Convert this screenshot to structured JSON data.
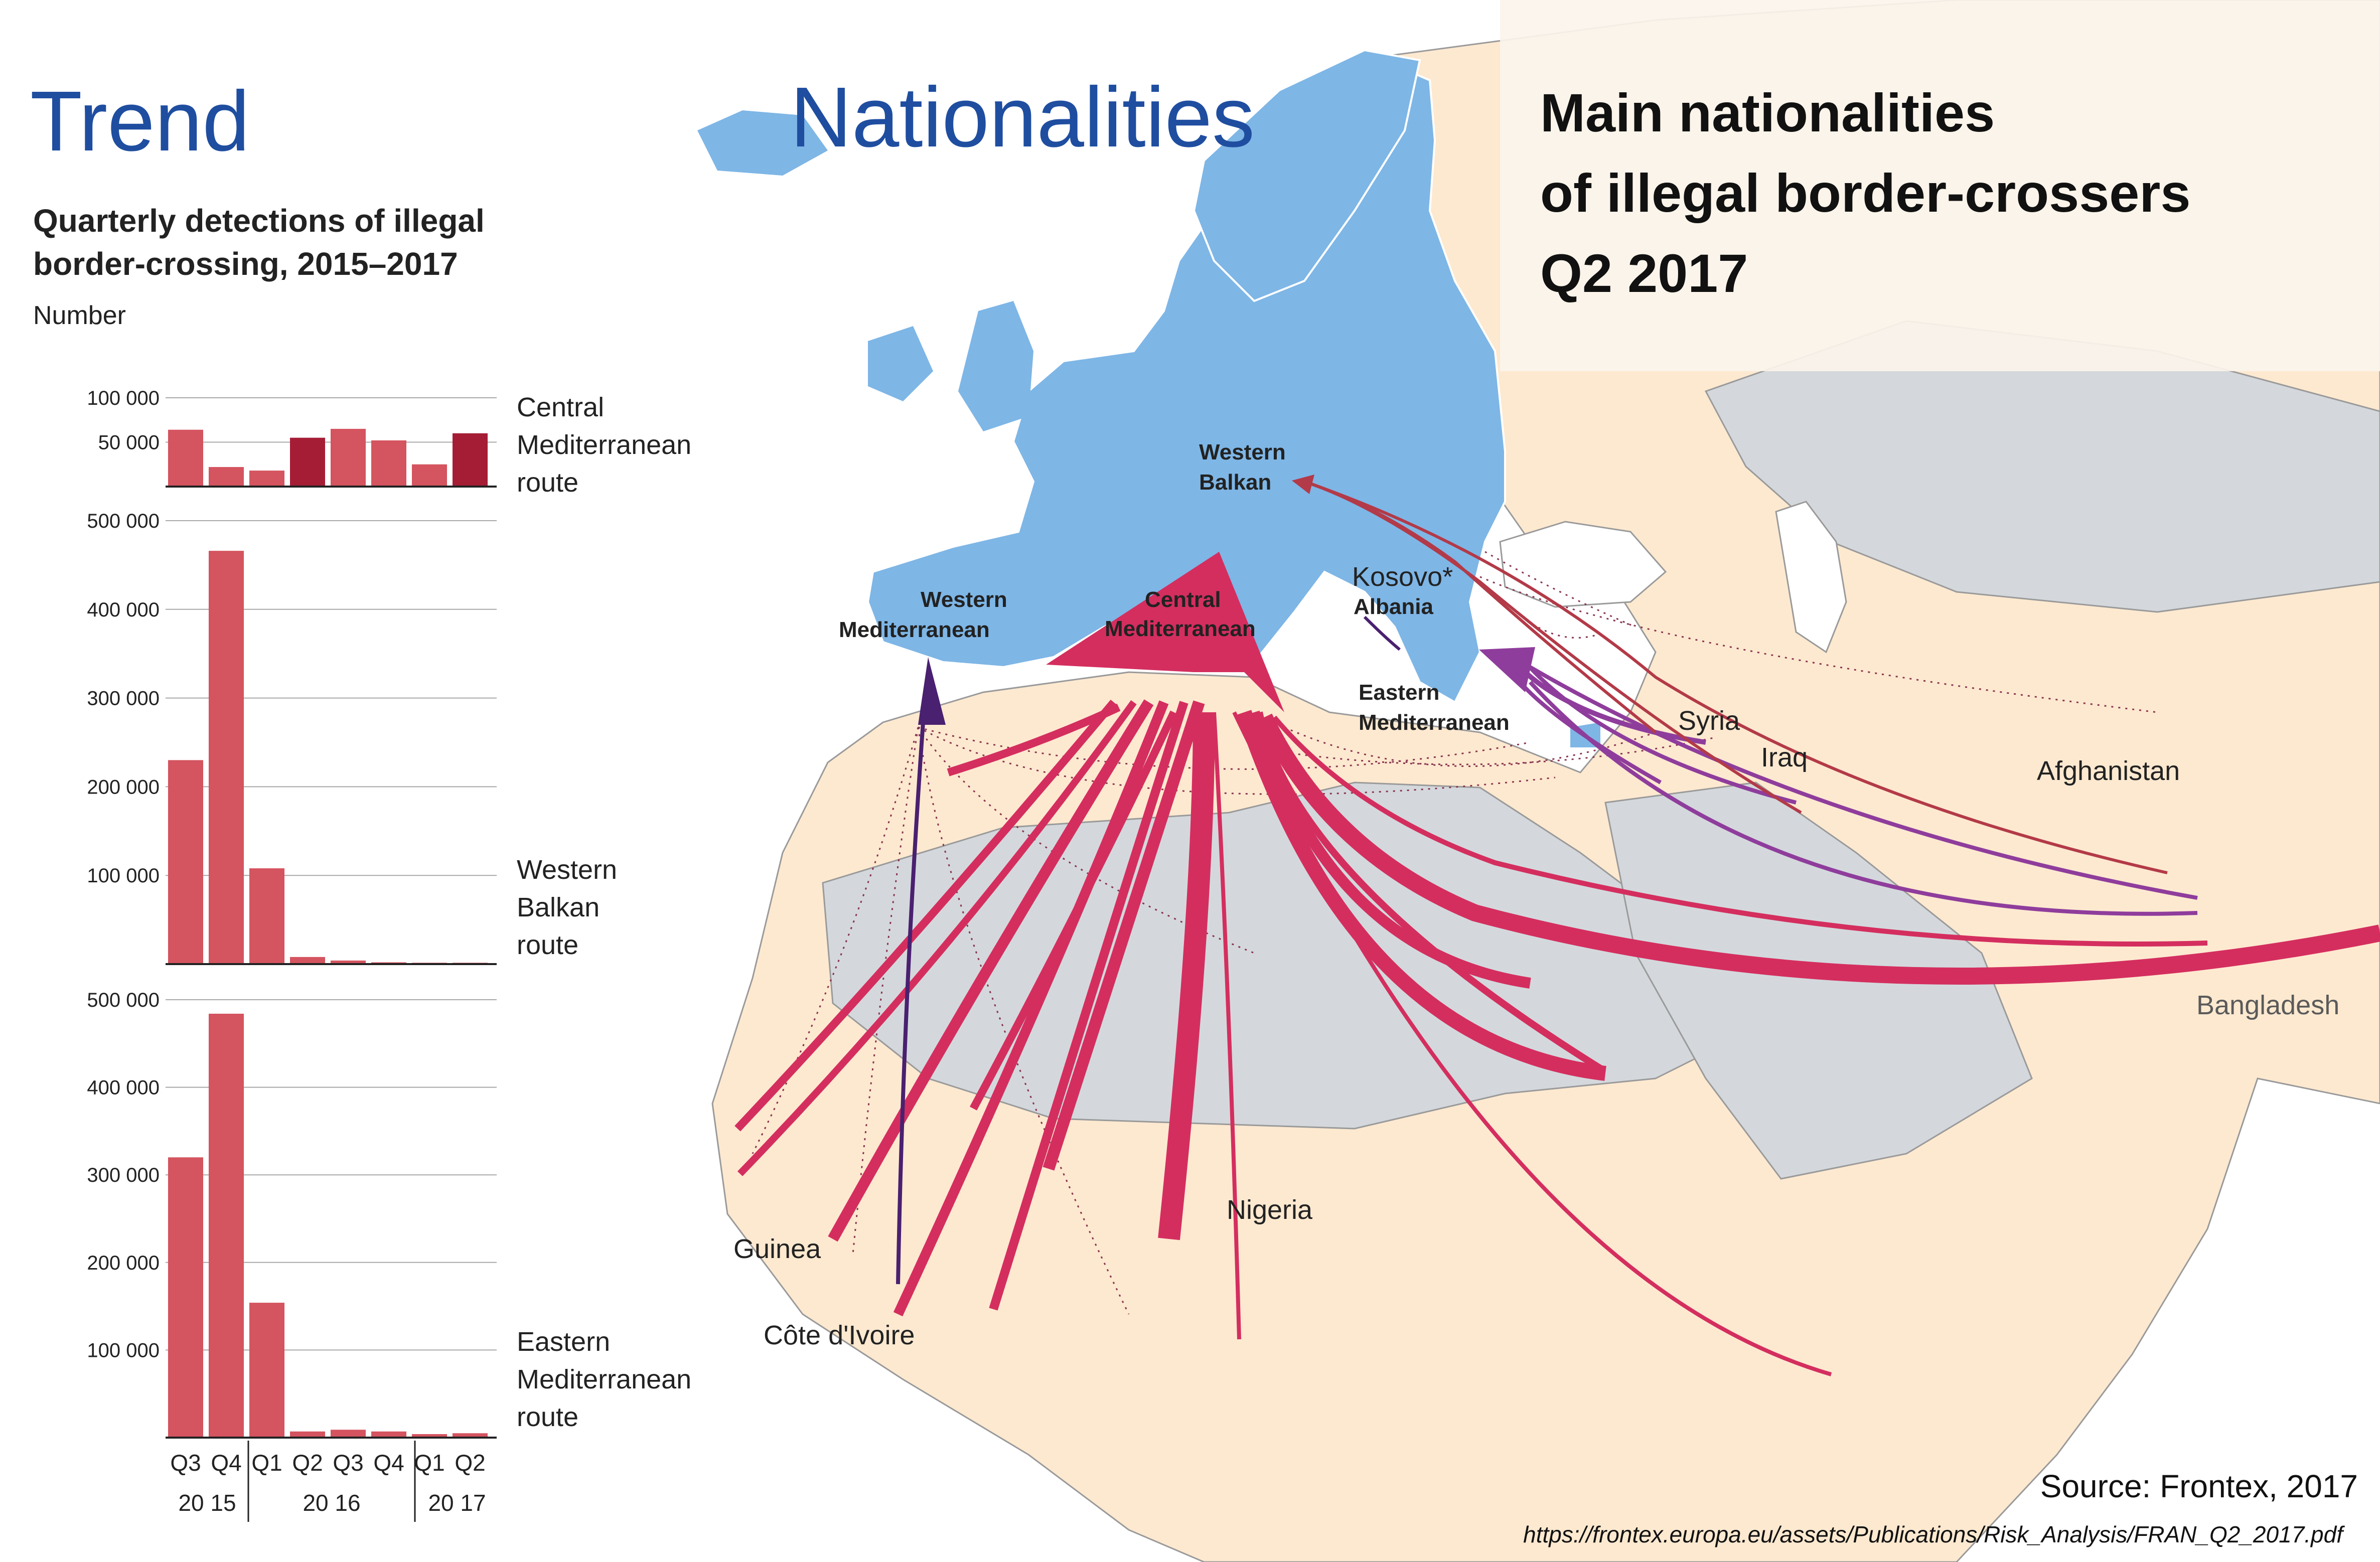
{
  "header": {
    "trend_title": "Trend",
    "nationalities_title": "Nationalities",
    "subtitle_line1": "Quarterly detections of illegal",
    "subtitle_line2": "border-crossing, 2015–2017",
    "unit": "Number"
  },
  "map": {
    "title_line1": "Main nationalities",
    "title_line2": "of illegal border-crossers",
    "title_line3": "Q2 2017",
    "regions": {
      "western_balkan_1": "Western",
      "western_balkan_2": "Balkan",
      "western_med_1": "Western",
      "western_med_2": "Mediterranean",
      "central_med_1": "Central",
      "central_med_2": "Mediterranean",
      "eastern_med_1": "Eastern",
      "eastern_med_2": "Mediterranean"
    },
    "countries": {
      "kosovo": "Kosovo*",
      "albania": "Albania",
      "syria": "Syria",
      "iraq": "Iraq",
      "afghanistan": "Afghanistan",
      "bangladesh": "Bangladesh",
      "nigeria": "Nigeria",
      "guinea": "Guinea",
      "cote_divoire": "Côte d'Ivoire"
    },
    "colors": {
      "europe": "#7eb6e6",
      "land": "#fde9d0",
      "desert": "#d4d8dc",
      "flow_central": "#d42e5f",
      "flow_eastern": "#8f3d9c",
      "flow_balkan": "#b33a48",
      "flow_western": "#4a2070"
    }
  },
  "source": {
    "text": "Source: Frontex, 2017",
    "url": "https://frontex.europa.eu/assets/Publications/Risk_Analysis/FRAN_Q2_2017.pdf"
  },
  "x_axis": {
    "quarters": [
      "Q3",
      "Q4",
      "Q1",
      "Q2",
      "Q3",
      "Q4",
      "Q1",
      "Q2"
    ],
    "year_2015": "20 15",
    "year_2016": "20 16",
    "year_2017": "20 17"
  },
  "chart_data": [
    {
      "type": "bar",
      "route_line1": "Central",
      "route_line2": "Mediterranean",
      "route_line3": "route",
      "categories": [
        "2015 Q3",
        "2015 Q4",
        "2016 Q1",
        "2016 Q2",
        "2016 Q3",
        "2016 Q4",
        "2017 Q1",
        "2017 Q2"
      ],
      "values": [
        64000,
        22000,
        18000,
        55000,
        65000,
        52000,
        25000,
        60000
      ],
      "highlight": [
        false,
        false,
        false,
        true,
        false,
        false,
        false,
        true
      ],
      "ylim": [
        0,
        100000
      ],
      "ticks": [
        50000,
        100000
      ],
      "tick_labels": [
        "50 000",
        "100 000"
      ],
      "color": "#d4545f",
      "highlight_color": "#a51d35"
    },
    {
      "type": "bar",
      "route_line1": "Western",
      "route_line2": "Balkan",
      "route_line3": "route",
      "categories": [
        "2015 Q3",
        "2015 Q4",
        "2016 Q1",
        "2016 Q2",
        "2016 Q3",
        "2016 Q4",
        "2017 Q1",
        "2017 Q2"
      ],
      "values": [
        230000,
        466000,
        108000,
        8000,
        4000,
        2000,
        1500,
        1500
      ],
      "ylim": [
        0,
        500000
      ],
      "ticks": [
        100000,
        200000,
        300000,
        400000,
        500000
      ],
      "tick_labels": [
        "100 000",
        "200 000",
        "300 000",
        "400 000",
        "500 000"
      ],
      "color": "#d4545f"
    },
    {
      "type": "bar",
      "route_line1": "Eastern",
      "route_line2": "Mediterranean",
      "route_line3": "route",
      "categories": [
        "2015 Q3",
        "2015 Q4",
        "2016 Q1",
        "2016 Q2",
        "2016 Q3",
        "2016 Q4",
        "2017 Q1",
        "2017 Q2"
      ],
      "values": [
        320000,
        484000,
        154000,
        7000,
        9000,
        7000,
        4000,
        5000
      ],
      "ylim": [
        0,
        500000
      ],
      "ticks": [
        100000,
        200000,
        300000,
        400000,
        500000
      ],
      "tick_labels": [
        "100 000",
        "200 000",
        "300 000",
        "400 000",
        "500 000"
      ],
      "color": "#d4545f"
    }
  ]
}
